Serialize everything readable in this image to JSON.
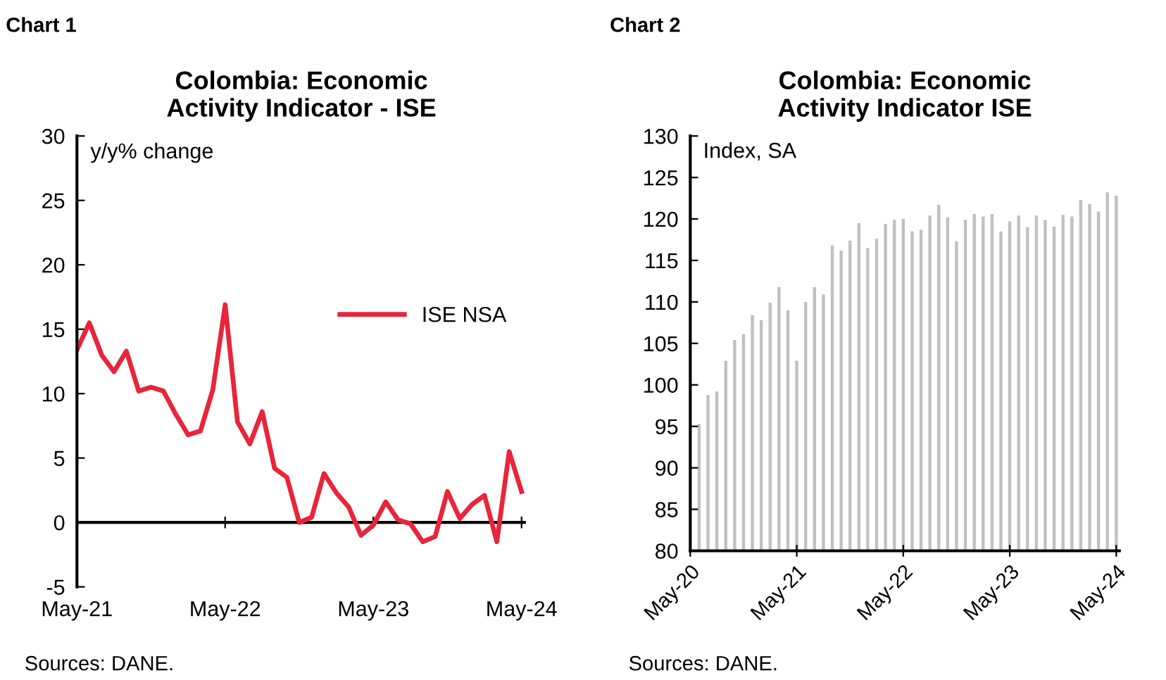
{
  "chart_data": [
    {
      "type": "line",
      "title": "Colombia: Economic\nActivity Indicator - ISE",
      "ylabel": "y/y% change",
      "annotations": [
        "Chart 1",
        "Sources: DANE."
      ],
      "categories": [
        "May-21",
        null,
        null,
        null,
        null,
        null,
        null,
        null,
        null,
        null,
        null,
        null,
        "May-22",
        null,
        null,
        null,
        null,
        null,
        null,
        null,
        null,
        null,
        null,
        null,
        "May-23",
        null,
        null,
        null,
        null,
        null,
        null,
        null,
        null,
        null,
        null,
        null,
        "May-24"
      ],
      "series": [
        {
          "name": "ISE NSA",
          "color": "#e8253a",
          "values": [
            13.4,
            15.5,
            13.0,
            11.7,
            13.3,
            10.2,
            10.5,
            10.2,
            8.4,
            6.8,
            7.1,
            10.3,
            16.9,
            7.8,
            6.1,
            8.6,
            4.2,
            3.5,
            0.0,
            0.4,
            3.8,
            2.3,
            1.2,
            -1.0,
            -0.2,
            1.6,
            0.2,
            -0.1,
            -1.5,
            -1.1,
            2.4,
            0.3,
            1.4,
            2.1,
            -1.5,
            5.5,
            2.4
          ]
        }
      ],
      "ylim": [
        -5,
        30
      ],
      "yticks": [
        -5,
        0,
        5,
        10,
        15,
        20,
        25,
        30
      ],
      "ref_lines": [
        {
          "axis": "y",
          "value": 0,
          "color": "#000000"
        }
      ],
      "grid": false,
      "legend": "right",
      "marker": "none",
      "line_style": "solid"
    },
    {
      "type": "bar",
      "title": "Colombia: Economic\nActivity Indicator ISE",
      "ylabel": "Index, SA",
      "annotations": [
        "Chart 2",
        "Sources: DANE."
      ],
      "categories": [
        "May-20",
        null,
        null,
        null,
        null,
        null,
        null,
        null,
        null,
        null,
        null,
        null,
        "May-21",
        null,
        null,
        null,
        null,
        null,
        null,
        null,
        null,
        null,
        null,
        null,
        "May-22",
        null,
        null,
        null,
        null,
        null,
        null,
        null,
        null,
        null,
        null,
        null,
        "May-23",
        null,
        null,
        null,
        null,
        null,
        null,
        null,
        null,
        null,
        null,
        null,
        "May-24"
      ],
      "series": [
        {
          "color": "#c0c0c0",
          "values": [
            null,
            95.3,
            98.8,
            99.2,
            102.9,
            105.4,
            106.1,
            108.4,
            107.8,
            109.9,
            111.8,
            109.0,
            102.9,
            110.0,
            111.8,
            110.9,
            116.8,
            116.2,
            117.4,
            119.5,
            116.5,
            117.6,
            119.4,
            119.9,
            120.0,
            118.5,
            118.7,
            120.4,
            121.7,
            120.2,
            117.3,
            119.9,
            120.6,
            120.3,
            120.6,
            118.5,
            119.7,
            120.4,
            119.0,
            120.4,
            119.9,
            119.1,
            120.5,
            120.3,
            122.3,
            121.8,
            120.9,
            123.2,
            122.8
          ]
        }
      ],
      "ylim": [
        80,
        130
      ],
      "yticks": [
        80,
        85,
        90,
        95,
        100,
        105,
        110,
        115,
        120,
        125,
        130
      ],
      "grid": false,
      "legend": false
    }
  ]
}
